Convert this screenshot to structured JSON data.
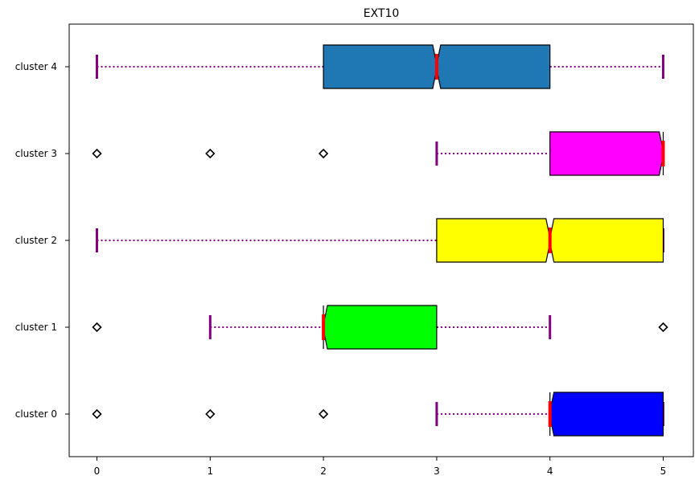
{
  "chart_data": {
    "type": "boxplot",
    "orientation": "horizontal",
    "title": "EXT10",
    "xlabel": "",
    "ylabel": "",
    "xlim": [
      -0.25,
      5.25
    ],
    "xticks": [
      0,
      1,
      2,
      3,
      4,
      5
    ],
    "categories": [
      "cluster 0",
      "cluster 1",
      "cluster 2",
      "cluster 3",
      "cluster 4"
    ],
    "grid": false,
    "notched": true,
    "whisker_color": "#800080",
    "median_color": "#ff0000",
    "boxes": [
      {
        "category": "cluster 0",
        "q1": 4,
        "median": 4,
        "q3": 5,
        "whisker_low": 3,
        "whisker_high": 5,
        "outliers": [
          0,
          1,
          2
        ],
        "color": "#0000ff"
      },
      {
        "category": "cluster 1",
        "q1": 2,
        "median": 2,
        "q3": 3,
        "whisker_low": 1,
        "whisker_high": 4,
        "outliers": [
          0,
          5
        ],
        "color": "#00ff00"
      },
      {
        "category": "cluster 2",
        "q1": 3,
        "median": 4,
        "q3": 5,
        "whisker_low": 0,
        "whisker_high": 5,
        "outliers": [],
        "color": "#ffff00"
      },
      {
        "category": "cluster 3",
        "q1": 4,
        "median": 5,
        "q3": 5,
        "whisker_low": 3,
        "whisker_high": 5,
        "outliers": [
          0,
          1,
          2
        ],
        "color": "#ff00ff"
      },
      {
        "category": "cluster 4",
        "q1": 2,
        "median": 3,
        "q3": 4,
        "whisker_low": 0,
        "whisker_high": 5,
        "outliers": [],
        "color": "#1f77b4"
      }
    ]
  }
}
